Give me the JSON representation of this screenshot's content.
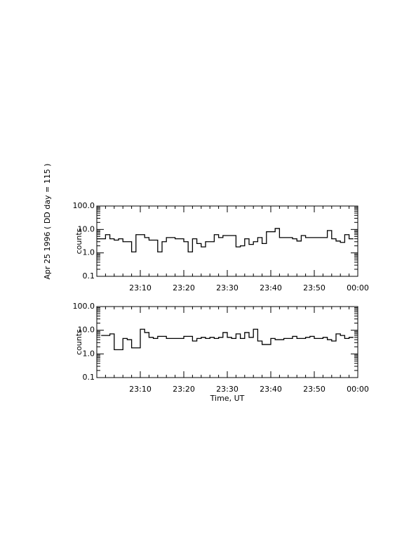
{
  "title": "Apr 25 1996  ( DD day = 115 )",
  "chart_data": [
    {
      "type": "line",
      "drawstyle": "steps",
      "ylog": true,
      "color": "#000000",
      "ylabel": "counts",
      "x": [
        "23:00",
        "23:01",
        "23:02",
        "23:03",
        "23:04",
        "23:05",
        "23:06",
        "23:07",
        "23:08",
        "23:09",
        "23:10",
        "23:11",
        "23:12",
        "23:13",
        "23:14",
        "23:15",
        "23:16",
        "23:17",
        "23:18",
        "23:19",
        "23:20",
        "23:21",
        "23:22",
        "23:23",
        "23:24",
        "23:25",
        "23:26",
        "23:27",
        "23:28",
        "23:29",
        "23:30",
        "23:31",
        "23:32",
        "23:33",
        "23:34",
        "23:35",
        "23:36",
        "23:37",
        "23:38",
        "23:39",
        "23:40",
        "23:41",
        "23:42",
        "23:43",
        "23:44",
        "23:45",
        "23:46",
        "23:47",
        "23:48",
        "23:49",
        "23:50",
        "23:51",
        "23:52",
        "23:53",
        "23:54",
        "23:55",
        "23:56",
        "23:57",
        "23:58",
        "23:59"
      ],
      "values": [
        4,
        4,
        6,
        4,
        3.5,
        4,
        3,
        3,
        1.1,
        6,
        6,
        4.5,
        3.5,
        3.5,
        1.1,
        3,
        4.5,
        4.5,
        4,
        4,
        3,
        1.1,
        4,
        2.5,
        1.8,
        3,
        3,
        6,
        4.5,
        5.5,
        5.5,
        5.5,
        1.8,
        2,
        4,
        2.3,
        3,
        4.5,
        2.5,
        8,
        8,
        11,
        4.5,
        4.5,
        4.5,
        4,
        3.2,
        5.5,
        4.5,
        4.5,
        4.5,
        4.5,
        4.5,
        9,
        4,
        3.2,
        2.8,
        6,
        4,
        4
      ],
      "xlim": [
        "23:00",
        "00:00"
      ],
      "xticks": [
        "23:10",
        "23:20",
        "23:30",
        "23:40",
        "23:50",
        "00:00"
      ],
      "ylim": [
        0.1,
        100
      ],
      "yticks": [
        0.1,
        {
          "value": 1,
          "label": "1.0"
        },
        {
          "value": 10,
          "label": "10.0"
        },
        {
          "value": 100,
          "label": "100.0"
        }
      ]
    },
    {
      "type": "line",
      "drawstyle": "steps",
      "ylog": true,
      "color": "#000000",
      "ylabel": "counts",
      "xlabel": "Time, UT",
      "x": [
        "23:01",
        "23:02",
        "23:03",
        "23:04",
        "23:05",
        "23:06",
        "23:07",
        "23:08",
        "23:09",
        "23:10",
        "23:11",
        "23:12",
        "23:13",
        "23:14",
        "23:15",
        "23:16",
        "23:17",
        "23:18",
        "23:19",
        "23:20",
        "23:21",
        "23:22",
        "23:23",
        "23:24",
        "23:25",
        "23:26",
        "23:27",
        "23:28",
        "23:29",
        "23:30",
        "23:31",
        "23:32",
        "23:33",
        "23:34",
        "23:35",
        "23:36",
        "23:37",
        "23:38",
        "23:39",
        "23:40",
        "23:41",
        "23:42",
        "23:43",
        "23:44",
        "23:45",
        "23:46",
        "23:47",
        "23:48",
        "23:49",
        "23:50",
        "23:51",
        "23:52",
        "23:53",
        "23:54",
        "23:55",
        "23:56",
        "23:57",
        "23:58",
        "23:59"
      ],
      "values": [
        6,
        6,
        7,
        1.5,
        1.5,
        4.5,
        4,
        1.8,
        1.8,
        11,
        8,
        5,
        4.5,
        5.5,
        5.5,
        4.5,
        4.5,
        4.5,
        4.5,
        5.5,
        5.5,
        3.5,
        4.5,
        5,
        4.5,
        5,
        4.5,
        5,
        8,
        5,
        4.5,
        7,
        4.5,
        8,
        5,
        11,
        3.5,
        2.5,
        2.5,
        4.5,
        4,
        4,
        4.5,
        4.5,
        5.5,
        4.5,
        4.5,
        5,
        5.5,
        4.5,
        4.5,
        5,
        4,
        3.5,
        7,
        6,
        4.5,
        5,
        5
      ],
      "xlim": [
        "23:00",
        "00:00"
      ],
      "xticks": [
        "23:10",
        "23:20",
        "23:30",
        "23:40",
        "23:50",
        "00:00"
      ],
      "ylim": [
        0.1,
        100
      ],
      "yticks": [
        0.1,
        {
          "value": 1,
          "label": "1.0"
        },
        {
          "value": 10,
          "label": "10.0"
        },
        {
          "value": 100,
          "label": "100.0"
        }
      ]
    }
  ]
}
